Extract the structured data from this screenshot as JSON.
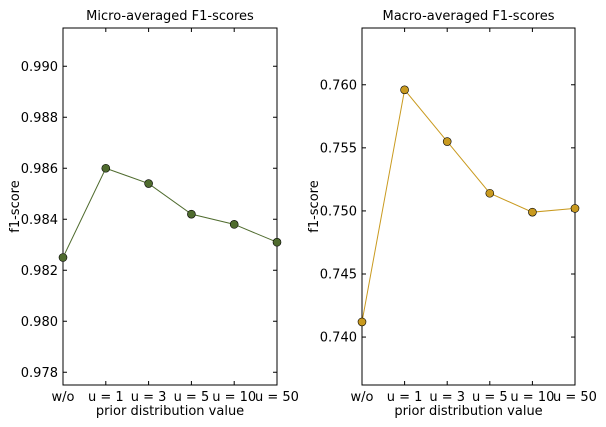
{
  "chart_data": [
    {
      "type": "line",
      "title": "Micro-averaged F1-scores",
      "xlabel": "prior distribution value",
      "ylabel": "f1-score",
      "categories": [
        "w/o",
        "u = 1",
        "u = 3",
        "u = 5",
        "u = 10",
        "u = 50"
      ],
      "ylim": [
        0.9775,
        0.9915
      ],
      "yticks": [
        0.978,
        0.98,
        0.982,
        0.984,
        0.986,
        0.988,
        0.99
      ],
      "ytick_labels": [
        "0.978",
        "0.980",
        "0.982",
        "0.984",
        "0.986",
        "0.988",
        "0.990"
      ],
      "grid": false,
      "color": "#4f6b2e",
      "series": [
        {
          "values": [
            0.9825,
            0.986,
            0.9854,
            0.9842,
            0.9838,
            0.9831
          ]
        }
      ]
    },
    {
      "type": "line",
      "title": "Macro-averaged F1-scores",
      "xlabel": "prior distribution value",
      "ylabel": "f1-score",
      "categories": [
        "w/o",
        "u = 1",
        "u = 3",
        "u = 5",
        "u = 10",
        "u = 50"
      ],
      "ylim": [
        0.7362,
        0.7645
      ],
      "yticks": [
        0.74,
        0.745,
        0.75,
        0.755,
        0.76
      ],
      "ytick_labels": [
        "0.740",
        "0.745",
        "0.750",
        "0.755",
        "0.760"
      ],
      "grid": false,
      "color": "#c99a1f",
      "series": [
        {
          "values": [
            0.7412,
            0.7596,
            0.7555,
            0.7514,
            0.7499,
            0.7502
          ]
        }
      ]
    }
  ]
}
